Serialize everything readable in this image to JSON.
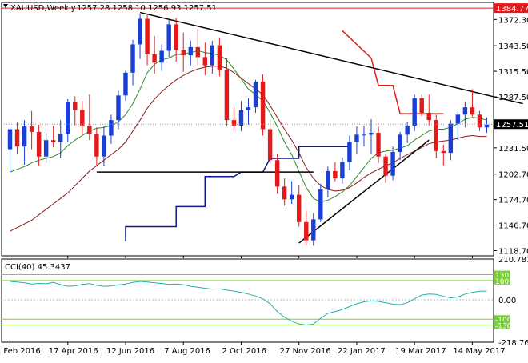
{
  "header": {
    "symbol": "XAUUSD,Weekly",
    "ohlc": "1257.28 1258.10 1256.93 1257.51"
  },
  "chart_data": [
    {
      "type": "candlestick",
      "title": "XAUUSD,Weekly",
      "y_ticks": [
        1118.7,
        1146.7,
        1174.7,
        1202.7,
        1231.5,
        1259.5,
        1287.5,
        1315.5,
        1343.5,
        1372.3
      ],
      "ylim": [
        1113.0,
        1391.0
      ],
      "x_tick_labels": [
        "21 Feb 2016",
        "17 Apr 2016",
        "12 Jun 2016",
        "7 Aug 2016",
        "2 Oct 2016",
        "27 Nov 2016",
        "22 Jan 2017",
        "19 Mar 2017",
        "14 May 2017"
      ],
      "x_tick_index": [
        0,
        8,
        16,
        24,
        32,
        40,
        48,
        56,
        64
      ],
      "price_labels": {
        "high": "1384.77",
        "current": "1257.51"
      },
      "high_value": 1384.77,
      "current_value": 1257.51,
      "up_color": "#1a3fd6",
      "down_color": "#e21a1a",
      "candles": [
        [
          1230,
          1256,
          1205,
          1252
        ],
        [
          1252,
          1260,
          1225,
          1233
        ],
        [
          1233,
          1262,
          1213,
          1255
        ],
        [
          1255,
          1272,
          1230,
          1249
        ],
        [
          1249,
          1257,
          1212,
          1222
        ],
        [
          1222,
          1248,
          1215,
          1240
        ],
        [
          1240,
          1256,
          1232,
          1238
        ],
        [
          1238,
          1262,
          1220,
          1247
        ],
        [
          1247,
          1285,
          1238,
          1282
        ],
        [
          1282,
          1288,
          1256,
          1273
        ],
        [
          1273,
          1283,
          1246,
          1256
        ],
        [
          1256,
          1290,
          1240,
          1247
        ],
        [
          1247,
          1254,
          1211,
          1222
        ],
        [
          1222,
          1255,
          1212,
          1245
        ],
        [
          1245,
          1268,
          1236,
          1262
        ],
        [
          1262,
          1294,
          1252,
          1289
        ],
        [
          1289,
          1316,
          1283,
          1314
        ],
        [
          1314,
          1350,
          1300,
          1345
        ],
        [
          1345,
          1378,
          1329,
          1373
        ],
        [
          1373,
          1377,
          1322,
          1334
        ],
        [
          1334,
          1354,
          1313,
          1325
        ],
        [
          1325,
          1345,
          1316,
          1338
        ],
        [
          1338,
          1372,
          1331,
          1367
        ],
        [
          1367,
          1374,
          1326,
          1339
        ],
        [
          1339,
          1358,
          1315,
          1333
        ],
        [
          1333,
          1349,
          1322,
          1342
        ],
        [
          1342,
          1362,
          1321,
          1331
        ],
        [
          1331,
          1347,
          1311,
          1322
        ],
        [
          1322,
          1349,
          1313,
          1344
        ],
        [
          1344,
          1352,
          1310,
          1317
        ],
        [
          1317,
          1330,
          1255,
          1262
        ],
        [
          1262,
          1276,
          1251,
          1256
        ],
        [
          1256,
          1283,
          1250,
          1273
        ],
        [
          1273,
          1286,
          1257,
          1276
        ],
        [
          1276,
          1306,
          1270,
          1304
        ],
        [
          1304,
          1312,
          1245,
          1252
        ],
        [
          1252,
          1263,
          1214,
          1218
        ],
        [
          1218,
          1225,
          1181,
          1189
        ],
        [
          1189,
          1198,
          1168,
          1175
        ],
        [
          1175,
          1195,
          1170,
          1180
        ],
        [
          1180,
          1190,
          1145,
          1150
        ],
        [
          1150,
          1162,
          1124,
          1130
        ],
        [
          1130,
          1160,
          1124,
          1153
        ],
        [
          1153,
          1192,
          1150,
          1186
        ],
        [
          1186,
          1211,
          1177,
          1206
        ],
        [
          1206,
          1216,
          1195,
          1198
        ],
        [
          1198,
          1221,
          1192,
          1216
        ],
        [
          1216,
          1245,
          1207,
          1238
        ],
        [
          1238,
          1255,
          1225,
          1246
        ],
        [
          1246,
          1256,
          1233,
          1246
        ],
        [
          1246,
          1263,
          1225,
          1248
        ],
        [
          1248,
          1255,
          1215,
          1222
        ],
        [
          1222,
          1225,
          1193,
          1201
        ],
        [
          1201,
          1233,
          1196,
          1227
        ],
        [
          1227,
          1249,
          1218,
          1246
        ],
        [
          1246,
          1260,
          1237,
          1256
        ],
        [
          1256,
          1290,
          1250,
          1286
        ],
        [
          1286,
          1290,
          1266,
          1270
        ],
        [
          1270,
          1290,
          1256,
          1262
        ],
        [
          1262,
          1268,
          1220,
          1228
        ],
        [
          1228,
          1235,
          1212,
          1226
        ],
        [
          1226,
          1262,
          1218,
          1258
        ],
        [
          1258,
          1272,
          1240,
          1268
        ],
        [
          1268,
          1282,
          1254,
          1276
        ],
        [
          1276,
          1296,
          1266,
          1268
        ],
        [
          1268,
          1272,
          1250,
          1254
        ],
        [
          1254,
          1265,
          1248,
          1257
        ]
      ],
      "moving_averages": [
        {
          "name": "green",
          "color": "#2c8c2c",
          "values": [
            1205,
            1208,
            1211,
            1215,
            1218,
            1220,
            1222,
            1226,
            1234,
            1240,
            1245,
            1250,
            1253,
            1254,
            1256,
            1260,
            1268,
            1280,
            1296,
            1314,
            1323,
            1328,
            1330,
            1334,
            1334,
            1336,
            1338,
            1336,
            1335,
            1333,
            1328,
            1318,
            1307,
            1296,
            1290,
            1283,
            1270,
            1255,
            1238,
            1224,
            1206,
            1188,
            1176,
            1172,
            1174,
            1178,
            1183,
            1190,
            1200,
            1210,
            1220,
            1226,
            1228,
            1229,
            1231,
            1234,
            1240,
            1245,
            1250,
            1252,
            1252,
            1254,
            1258,
            1263,
            1265,
            1264,
            1262
          ]
        },
        {
          "name": "maroon",
          "color": "#8b1a1a",
          "values": [
            1140,
            1144,
            1148,
            1152,
            1158,
            1164,
            1170,
            1176,
            1182,
            1190,
            1198,
            1206,
            1212,
            1218,
            1224,
            1230,
            1238,
            1250,
            1262,
            1275,
            1285,
            1293,
            1300,
            1306,
            1311,
            1315,
            1318,
            1320,
            1321,
            1321,
            1319,
            1314,
            1308,
            1302,
            1296,
            1290,
            1278,
            1265,
            1252,
            1240,
            1226,
            1210,
            1198,
            1190,
            1186,
            1184,
            1185,
            1188,
            1193,
            1199,
            1204,
            1208,
            1212,
            1215,
            1220,
            1224,
            1228,
            1232,
            1236,
            1238,
            1239,
            1240,
            1242,
            1244,
            1245,
            1244,
            1244
          ]
        }
      ],
      "channel_upper": {
        "color": "#e21a1a",
        "points": [
          [
            46,
            1360
          ],
          [
            50,
            1330
          ],
          [
            51,
            1300
          ],
          [
            53,
            1300
          ],
          [
            54,
            1269
          ],
          [
            59,
            1269
          ],
          [
            60,
            1269
          ]
        ]
      },
      "channel_lower": {
        "color": "#0a1a8c",
        "points": [
          [
            0,
            1129
          ],
          [
            10,
            1129
          ],
          [
            11,
            1145
          ],
          [
            17,
            1145
          ],
          [
            18,
            1184
          ],
          [
            20,
            1184
          ],
          [
            21,
            1200
          ],
          [
            28,
            1200
          ],
          [
            29,
            1205
          ],
          [
            30,
            1212
          ],
          [
            31,
            1212
          ],
          [
            32,
            1220
          ],
          [
            33,
            1220
          ],
          [
            34,
            1232
          ],
          [
            38,
            1232
          ],
          [
            43,
            1232
          ],
          [
            48,
            1232
          ],
          [
            53,
            1232
          ],
          [
            58,
            1232
          ],
          [
            63,
            1232
          ],
          [
            67,
            1232
          ]
        ]
      },
      "channel_lower_segments": [
        {
          "points": [
            [
              16,
              1129
            ],
            [
              16,
              1145
            ],
            [
              23,
              1145
            ],
            [
              23,
              1167
            ],
            [
              26,
              1167
            ],
            [
              27,
              1167
            ],
            [
              27,
              1200
            ],
            [
              31,
              1200
            ],
            [
              32,
              1205
            ],
            [
              35,
              1205
            ],
            [
              36,
              1220
            ],
            [
              40,
              1220
            ],
            [
              40,
              1233
            ],
            [
              47,
              1233
            ]
          ]
        },
        {
          "points": [
            [
              76,
              1173
            ],
            [
              77,
              1185
            ],
            [
              83,
              1185
            ],
            [
              84,
              1198
            ],
            [
              88,
              1198
            ]
          ]
        }
      ],
      "trendlines": [
        {
          "color": "#000000",
          "from": [
            18,
            1380
          ],
          "to": [
            71,
            1280
          ]
        },
        {
          "color": "#000000",
          "from": [
            12,
            1205
          ],
          "to": [
            42,
            1205
          ]
        },
        {
          "color": "#000000",
          "from": [
            40,
            1127
          ],
          "to": [
            58,
            1240
          ]
        }
      ]
    },
    {
      "type": "line",
      "indicator_label": "CCI(40) 45.3437",
      "y_labels": [
        "210.7818",
        "130",
        "100",
        "0.00",
        "-100",
        "-130",
        "-218.7603"
      ],
      "ylim": [
        -218.7603,
        210.7818
      ],
      "levels": [
        130,
        100,
        0,
        -100,
        -130
      ],
      "line_color": "#20b2aa",
      "values": [
        95,
        92,
        88,
        82,
        85,
        83,
        90,
        78,
        70,
        72,
        80,
        84,
        75,
        70,
        72,
        77,
        82,
        90,
        95,
        92,
        88,
        85,
        80,
        82,
        78,
        70,
        65,
        60,
        55,
        57,
        50,
        45,
        38,
        30,
        20,
        5,
        -20,
        -60,
        -90,
        -110,
        -125,
        -130,
        -125,
        -95,
        -70,
        -60,
        -50,
        -35,
        -20,
        -10,
        -5,
        -8,
        -15,
        -22,
        -25,
        -15,
        5,
        25,
        30,
        28,
        18,
        10,
        15,
        30,
        38,
        45,
        45
      ]
    }
  ]
}
